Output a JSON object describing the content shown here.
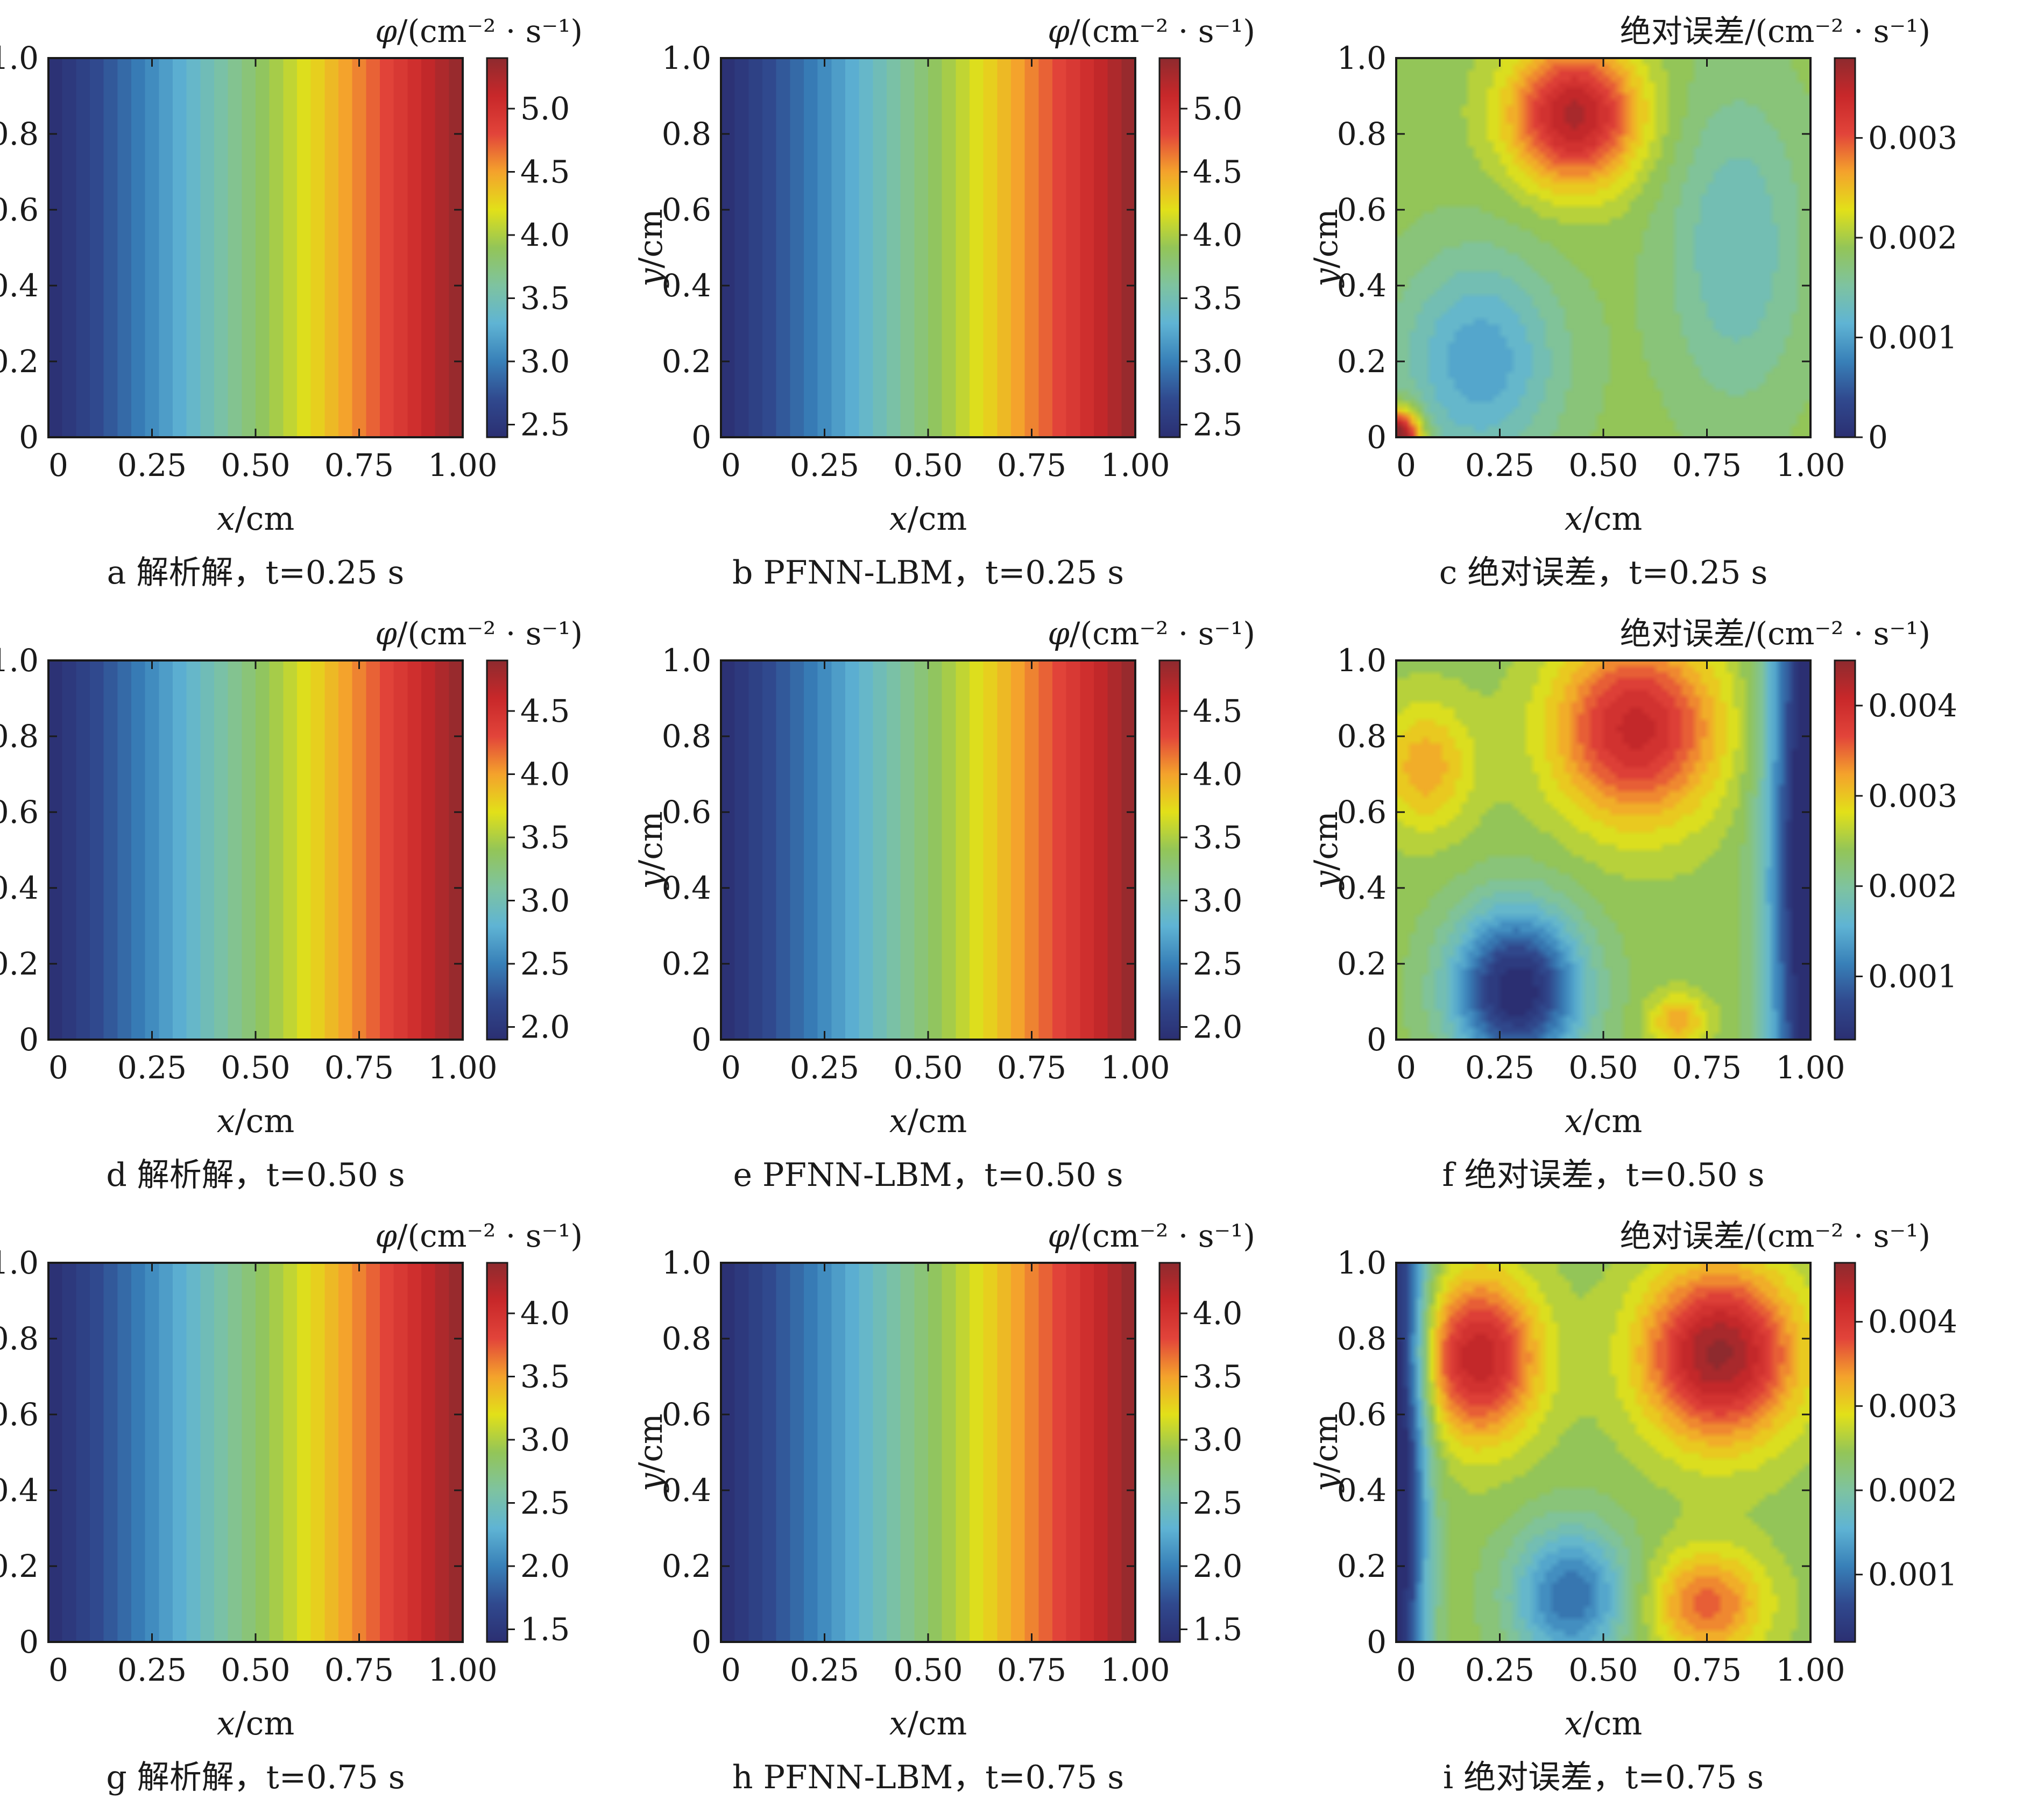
{
  "colormap": [
    "#2b2f72",
    "#30498e",
    "#3880b8",
    "#5fb4d4",
    "#7ec3a0",
    "#93c558",
    "#e2e019",
    "#f4a22c",
    "#e2443a",
    "#c8282a",
    "#8e2a2e"
  ],
  "xlabel": "x/cm",
  "ylabel": "y/cm",
  "x_ticks": [
    "0",
    "0.25",
    "0.50",
    "0.75",
    "1.00"
  ],
  "y_ticks": [
    "0",
    "0.2",
    "0.4",
    "0.6",
    "0.8",
    "1.0"
  ],
  "cb_title_phi": "φ/(cm⁻² · s⁻¹)",
  "cb_title_err": "绝对误差/(cm⁻² · s⁻¹)",
  "chart_data": [
    {
      "id": "a",
      "type": "heatmap",
      "field": "analytic",
      "caption": "a  解析解，t=0.25 s",
      "colorbar_title": "φ/(cm⁻² · s⁻¹)",
      "clim": [
        2.4,
        5.4
      ],
      "cb_ticks": [
        "2.5",
        "3.0",
        "3.5",
        "4.0",
        "4.5",
        "5.0"
      ],
      "xlim": [
        0,
        1
      ],
      "ylim": [
        0,
        1
      ]
    },
    {
      "id": "b",
      "type": "heatmap",
      "field": "pfnn",
      "caption": "b  PFNN-LBM，t=0.25 s",
      "colorbar_title": "φ/(cm⁻² · s⁻¹)",
      "clim": [
        2.4,
        5.4
      ],
      "cb_ticks": [
        "2.5",
        "3.0",
        "3.5",
        "4.0",
        "4.5",
        "5.0"
      ],
      "xlim": [
        0,
        1
      ],
      "ylim": [
        0,
        1
      ]
    },
    {
      "id": "c",
      "type": "heatmap",
      "field": "error",
      "caption": "c  绝对误差，t=0.25 s",
      "colorbar_title": "绝对误差/(cm⁻² · s⁻¹)",
      "clim": [
        0,
        0.0038
      ],
      "cb_ticks": [
        "0",
        "0.001",
        "0.002",
        "0.003"
      ],
      "xlim": [
        0,
        1
      ],
      "ylim": [
        0,
        1
      ],
      "features": [
        {
          "x": 0.2,
          "y": 0.2,
          "amp": -0.0009,
          "sx": 0.14,
          "sy": 0.2
        },
        {
          "x": 0.43,
          "y": 0.85,
          "amp": 0.0017,
          "sx": 0.11,
          "sy": 0.13
        },
        {
          "x": 0.82,
          "y": 0.5,
          "amp": -0.0006,
          "sx": 0.12,
          "sy": 0.3
        },
        {
          "x": 0.0,
          "y": 0.0,
          "amp": 0.0024,
          "sx": 0.04,
          "sy": 0.05
        }
      ]
    },
    {
      "id": "d",
      "type": "heatmap",
      "field": "analytic",
      "caption": "d  解析解，t=0.50 s",
      "colorbar_title": "φ/(cm⁻² · s⁻¹)",
      "clim": [
        1.9,
        4.9
      ],
      "cb_ticks": [
        "2.0",
        "2.5",
        "3.0",
        "3.5",
        "4.0",
        "4.5"
      ],
      "xlim": [
        0,
        1
      ],
      "ylim": [
        0,
        1
      ]
    },
    {
      "id": "e",
      "type": "heatmap",
      "field": "pfnn",
      "caption": "e  PFNN-LBM，t=0.50 s",
      "colorbar_title": "φ/(cm⁻² · s⁻¹)",
      "clim": [
        1.9,
        4.9
      ],
      "cb_ticks": [
        "2.0",
        "2.5",
        "3.0",
        "3.5",
        "4.0",
        "4.5"
      ],
      "xlim": [
        0,
        1
      ],
      "ylim": [
        0,
        1
      ]
    },
    {
      "id": "f",
      "type": "heatmap",
      "field": "error",
      "caption": "f  绝对误差，t=0.50 s",
      "colorbar_title": "绝对误差/(cm⁻² · s⁻¹)",
      "clim": [
        0.0003,
        0.0045
      ],
      "cb_ticks": [
        "0.001",
        "0.002",
        "0.003",
        "0.004"
      ],
      "xlim": [
        0,
        1
      ],
      "ylim": [
        0,
        1
      ],
      "features": [
        {
          "x": 0.58,
          "y": 0.82,
          "amp": 0.0017,
          "sx": 0.14,
          "sy": 0.17
        },
        {
          "x": 0.07,
          "y": 0.72,
          "amp": 0.0008,
          "sx": 0.08,
          "sy": 0.12
        },
        {
          "x": 0.29,
          "y": 0.13,
          "amp": -0.0022,
          "sx": 0.11,
          "sy": 0.15
        },
        {
          "x": 1.0,
          "y": 0.5,
          "amp": -0.0025,
          "sx": 0.07,
          "sy": 0.9
        },
        {
          "x": 0.68,
          "y": 0.05,
          "amp": 0.0008,
          "sx": 0.05,
          "sy": 0.05
        }
      ]
    },
    {
      "id": "g",
      "type": "heatmap",
      "field": "analytic",
      "caption": "g  解析解，t=0.75 s",
      "colorbar_title": "φ/(cm⁻² · s⁻¹)",
      "clim": [
        1.4,
        4.4
      ],
      "cb_ticks": [
        "1.5",
        "2.0",
        "2.5",
        "3.0",
        "3.5",
        "4.0"
      ],
      "xlim": [
        0,
        1
      ],
      "ylim": [
        0,
        1
      ]
    },
    {
      "id": "h",
      "type": "heatmap",
      "field": "pfnn",
      "caption": "h  PFNN-LBM，t=0.75 s",
      "colorbar_title": "φ/(cm⁻² · s⁻¹)",
      "clim": [
        1.4,
        4.4
      ],
      "cb_ticks": [
        "1.5",
        "2.0",
        "2.5",
        "3.0",
        "3.5",
        "4.0"
      ],
      "xlim": [
        0,
        1
      ],
      "ylim": [
        0,
        1
      ]
    },
    {
      "id": "i",
      "type": "heatmap",
      "field": "error",
      "caption": "i  绝对误差，t=0.75 s",
      "colorbar_title": "绝对误差/(cm⁻² · s⁻¹)",
      "clim": [
        0.0002,
        0.0047
      ],
      "cb_ticks": [
        "0.001",
        "0.002",
        "0.003",
        "0.004"
      ],
      "xlim": [
        0,
        1
      ],
      "ylim": [
        0,
        1
      ],
      "features": [
        {
          "x": 0.2,
          "y": 0.75,
          "amp": 0.0019,
          "sx": 0.1,
          "sy": 0.15
        },
        {
          "x": 0.78,
          "y": 0.76,
          "amp": 0.0022,
          "sx": 0.13,
          "sy": 0.16
        },
        {
          "x": 0.42,
          "y": 0.12,
          "amp": -0.0015,
          "sx": 0.1,
          "sy": 0.13
        },
        {
          "x": 0.0,
          "y": 0.5,
          "amp": -0.0026,
          "sx": 0.05,
          "sy": 0.9
        },
        {
          "x": 0.75,
          "y": 0.1,
          "amp": 0.0012,
          "sx": 0.1,
          "sy": 0.1
        }
      ]
    }
  ]
}
